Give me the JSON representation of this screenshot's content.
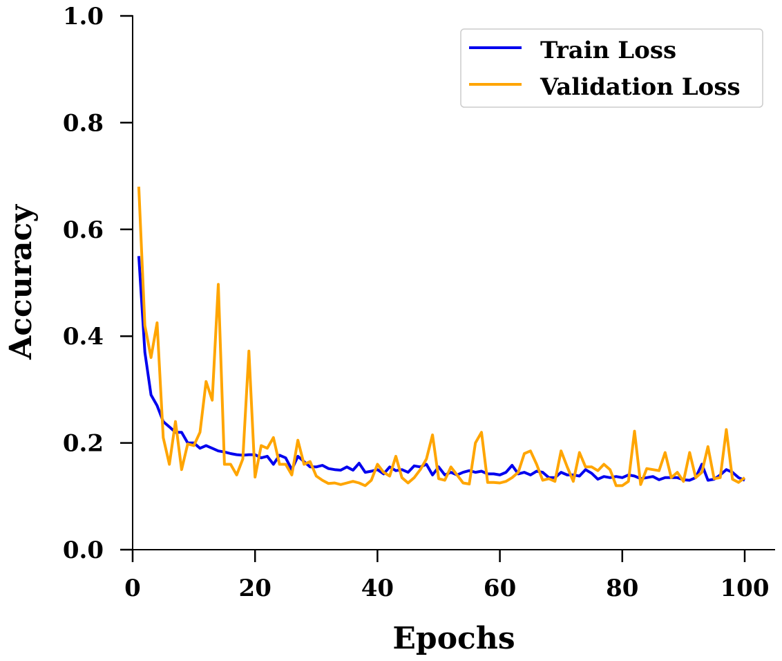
{
  "chart_data": {
    "type": "line",
    "xlabel": "Epochs",
    "ylabel": "Accuracy",
    "xlim": [
      0,
      105
    ],
    "ylim": [
      0,
      1.0
    ],
    "xticks": [
      0,
      20,
      40,
      60,
      80,
      100
    ],
    "yticks": [
      0.0,
      0.2,
      0.4,
      0.6,
      0.8,
      1.0
    ],
    "xtick_labels": [
      "0",
      "20",
      "40",
      "60",
      "80",
      "100"
    ],
    "ytick_labels": [
      "0.0",
      "0.2",
      "0.4",
      "0.6",
      "0.8",
      "1.0"
    ],
    "grid": false,
    "legend_position": "top-right",
    "x": [
      1,
      2,
      3,
      4,
      5,
      6,
      7,
      8,
      9,
      10,
      11,
      12,
      13,
      14,
      15,
      16,
      17,
      18,
      19,
      20,
      21,
      22,
      23,
      24,
      25,
      26,
      27,
      28,
      29,
      30,
      31,
      32,
      33,
      34,
      35,
      36,
      37,
      38,
      39,
      40,
      41,
      42,
      43,
      44,
      45,
      46,
      47,
      48,
      49,
      50,
      51,
      52,
      53,
      54,
      55,
      56,
      57,
      58,
      59,
      60,
      61,
      62,
      63,
      64,
      65,
      66,
      67,
      68,
      69,
      70,
      71,
      72,
      73,
      74,
      75,
      76,
      77,
      78,
      79,
      80,
      81,
      82,
      83,
      84,
      85,
      86,
      87,
      88,
      89,
      90,
      91,
      92,
      93,
      94,
      95,
      96,
      97,
      98,
      99,
      100
    ],
    "series": [
      {
        "name": "Train Loss",
        "color": "#0000ee",
        "values": [
          0.55,
          0.37,
          0.29,
          0.27,
          0.24,
          0.23,
          0.22,
          0.22,
          0.2,
          0.2,
          0.19,
          0.195,
          0.19,
          0.185,
          0.183,
          0.18,
          0.178,
          0.177,
          0.178,
          0.178,
          0.172,
          0.175,
          0.16,
          0.177,
          0.172,
          0.15,
          0.175,
          0.165,
          0.155,
          0.155,
          0.158,
          0.152,
          0.15,
          0.149,
          0.155,
          0.149,
          0.162,
          0.145,
          0.147,
          0.15,
          0.142,
          0.155,
          0.148,
          0.15,
          0.145,
          0.157,
          0.155,
          0.16,
          0.14,
          0.155,
          0.14,
          0.145,
          0.14,
          0.145,
          0.148,
          0.145,
          0.147,
          0.142,
          0.142,
          0.14,
          0.145,
          0.158,
          0.142,
          0.145,
          0.14,
          0.147,
          0.145,
          0.135,
          0.135,
          0.145,
          0.14,
          0.14,
          0.138,
          0.15,
          0.143,
          0.132,
          0.137,
          0.135,
          0.137,
          0.135,
          0.14,
          0.138,
          0.133,
          0.135,
          0.137,
          0.131,
          0.135,
          0.135,
          0.135,
          0.131,
          0.13,
          0.135,
          0.16,
          0.13,
          0.132,
          0.14,
          0.15,
          0.145,
          0.135,
          0.13
        ]
      },
      {
        "name": "Validation Loss",
        "color": "#ffa500",
        "values": [
          0.68,
          0.42,
          0.36,
          0.425,
          0.21,
          0.16,
          0.24,
          0.15,
          0.198,
          0.195,
          0.22,
          0.315,
          0.28,
          0.497,
          0.16,
          0.16,
          0.14,
          0.17,
          0.372,
          0.136,
          0.195,
          0.19,
          0.21,
          0.16,
          0.16,
          0.14,
          0.205,
          0.16,
          0.165,
          0.138,
          0.13,
          0.124,
          0.125,
          0.122,
          0.125,
          0.128,
          0.125,
          0.12,
          0.13,
          0.16,
          0.145,
          0.138,
          0.175,
          0.135,
          0.125,
          0.135,
          0.15,
          0.17,
          0.215,
          0.133,
          0.13,
          0.155,
          0.14,
          0.125,
          0.123,
          0.2,
          0.22,
          0.126,
          0.126,
          0.125,
          0.128,
          0.135,
          0.145,
          0.18,
          0.185,
          0.16,
          0.13,
          0.133,
          0.128,
          0.185,
          0.155,
          0.128,
          0.182,
          0.155,
          0.155,
          0.148,
          0.16,
          0.15,
          0.12,
          0.12,
          0.128,
          0.222,
          0.122,
          0.152,
          0.15,
          0.148,
          0.182,
          0.135,
          0.145,
          0.128,
          0.182,
          0.135,
          0.145,
          0.193,
          0.133,
          0.135,
          0.225,
          0.132,
          0.126,
          0.135
        ]
      }
    ]
  }
}
